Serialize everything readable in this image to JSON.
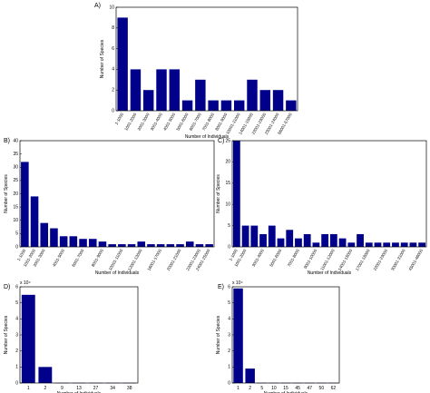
{
  "chart_data": [
    {
      "type": "bar",
      "panel_label": "A)",
      "ylabel": "Number of Species",
      "xlabel": "Number of Individuals",
      "color": "#00008b",
      "categories": [
        "1-1000",
        "1001-2000",
        "2001-3000",
        "3001-4000",
        "4001-5000",
        "5001-6000",
        "6001-7000",
        "7001-8000",
        "8001-9000",
        "10001-11000",
        "14001-15000",
        "22001-23000",
        "23001-24000",
        "56001-57000"
      ],
      "values": [
        9,
        4,
        2,
        4,
        4,
        1,
        3,
        1,
        1,
        1,
        3,
        2,
        2,
        1
      ],
      "ylim": [
        0,
        10
      ],
      "yticks": [
        0,
        2,
        4,
        6,
        8,
        10
      ]
    },
    {
      "type": "bar",
      "panel_label": "B)",
      "ylabel": "Number of Species",
      "xlabel": "Number of Individuals",
      "color": "#00008b",
      "categories": [
        "1-1000",
        "1001-2000",
        "2001-3000",
        null,
        "4001-5000",
        null,
        "6001-7000",
        null,
        "8001-9000",
        null,
        "10001-11000",
        null,
        "12001-13000",
        null,
        "16001-17000",
        null,
        "20001-21000",
        null,
        "22001-23000",
        "24001-25000"
      ],
      "values": [
        32,
        19,
        9,
        7,
        4,
        4,
        3,
        3,
        2,
        1,
        1,
        1,
        2,
        1,
        1,
        1,
        1,
        2,
        1,
        1
      ],
      "ylim": [
        0,
        40
      ],
      "yticks": [
        0,
        5,
        10,
        15,
        20,
        25,
        30,
        35,
        40
      ]
    },
    {
      "type": "bar",
      "panel_label": "C)",
      "ylabel": "Number of Species",
      "xlabel": "Number of Individuals",
      "color": "#00008b",
      "categories": [
        "1-1000",
        "1001-2000",
        null,
        "3001-4000",
        null,
        "5001-6000",
        null,
        "7001-8000",
        null,
        "9001-10000",
        null,
        "11001-12000",
        null,
        "14001-15000",
        null,
        "17001-18000",
        null,
        "22001-23000",
        null,
        "30001-31000",
        null,
        "45001-46000"
      ],
      "values": [
        25,
        5,
        5,
        3,
        5,
        2,
        4,
        2,
        3,
        1,
        3,
        3,
        2,
        1,
        3,
        1,
        1,
        1,
        1,
        1,
        1,
        1
      ],
      "ylim": [
        0,
        25
      ],
      "yticks": [
        0,
        5,
        10,
        15,
        20,
        25
      ]
    },
    {
      "type": "bar",
      "panel_label": "D)",
      "ylabel": "Number of Species",
      "xlabel": "Number of Individuals",
      "color": "#00008b",
      "exponent_label": "x 10⁴",
      "categories": [
        "1",
        "2",
        "9",
        "13",
        "27",
        "34",
        "38"
      ],
      "values": [
        55000,
        10000,
        100,
        100,
        100,
        100,
        100
      ],
      "ylim": [
        0,
        60000
      ],
      "yticks": [
        0,
        {
          "value": 10000,
          "label": "1"
        },
        {
          "value": 20000,
          "label": "2"
        },
        {
          "value": 30000,
          "label": "3"
        },
        {
          "value": 40000,
          "label": "4"
        },
        {
          "value": 50000,
          "label": "5"
        },
        {
          "value": 60000,
          "label": "6"
        }
      ]
    },
    {
      "type": "bar",
      "panel_label": "E)",
      "ylabel": "Number of Species",
      "xlabel": "Number of Individuals",
      "color": "#00008b",
      "exponent_label": "x 10⁴",
      "categories": [
        "1",
        "2",
        "5",
        "10",
        "15",
        "45",
        "47",
        "50",
        "62"
      ],
      "values": [
        59000,
        9000,
        100,
        100,
        100,
        100,
        100,
        100,
        100
      ],
      "ylim": [
        0,
        60000
      ],
      "yticks": [
        0,
        {
          "value": 10000,
          "label": "1"
        },
        {
          "value": 20000,
          "label": "2"
        },
        {
          "value": 30000,
          "label": "3"
        },
        {
          "value": 40000,
          "label": "4"
        },
        {
          "value": 50000,
          "label": "5"
        },
        {
          "value": 60000,
          "label": "6"
        }
      ]
    }
  ]
}
